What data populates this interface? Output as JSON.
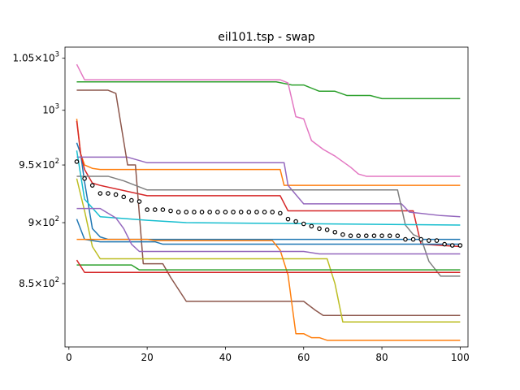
{
  "chart_data": {
    "type": "line",
    "title": "eil101.tsp - swap",
    "xlabel": "",
    "ylabel": "",
    "xlim": [
      -1,
      102
    ],
    "ylim": [
      801,
      1061
    ],
    "yscale": "log",
    "grid": false,
    "legend": "none",
    "xticks": [
      0,
      20,
      40,
      60,
      80,
      100
    ],
    "xtick_labels": [
      "0",
      "20",
      "40",
      "60",
      "80",
      "100"
    ],
    "yticks": [
      850,
      900,
      950,
      1000,
      1050
    ],
    "ytick_labels": [
      {
        "mant": "8.5",
        "exp": "2"
      },
      {
        "mant": "9",
        "exp": "2"
      },
      {
        "mant": "9.5",
        "exp": "2"
      },
      {
        "mant": "",
        "exp": "3"
      },
      {
        "mant": "1.05",
        "exp": "3"
      }
    ],
    "series": [
      {
        "color": "#1f77b4",
        "points": [
          [
            2,
            970
          ],
          [
            3,
            960
          ],
          [
            4,
            935
          ],
          [
            6,
            895
          ],
          [
            8,
            888
          ],
          [
            10,
            886
          ],
          [
            60,
            886
          ],
          [
            100,
            886
          ]
        ]
      },
      {
        "color": "#ff7f0e",
        "points": [
          [
            2,
            992
          ],
          [
            3,
            960
          ],
          [
            4,
            950
          ],
          [
            6,
            947
          ],
          [
            8,
            946
          ],
          [
            54,
            946
          ],
          [
            55,
            932
          ],
          [
            100,
            932
          ]
        ]
      },
      {
        "color": "#2ca02c",
        "points": [
          [
            2,
            1027
          ],
          [
            53,
            1027
          ],
          [
            57,
            1024
          ],
          [
            60,
            1024
          ],
          [
            64,
            1018
          ],
          [
            68,
            1018
          ],
          [
            71,
            1014
          ],
          [
            77,
            1014
          ],
          [
            80,
            1011
          ],
          [
            100,
            1011
          ]
        ]
      },
      {
        "color": "#d62728",
        "points": [
          [
            2,
            990
          ],
          [
            3,
            960
          ],
          [
            4,
            946
          ],
          [
            6,
            934
          ],
          [
            8,
            932
          ],
          [
            20,
            923
          ],
          [
            54,
            923
          ],
          [
            56,
            910
          ],
          [
            88,
            910
          ],
          [
            90,
            882
          ],
          [
            100,
            880
          ]
        ]
      },
      {
        "color": "#9467bd",
        "points": [
          [
            2,
            957
          ],
          [
            15,
            957
          ],
          [
            17,
            955
          ],
          [
            20,
            952
          ],
          [
            55,
            952
          ],
          [
            56,
            932
          ],
          [
            60,
            916
          ],
          [
            85,
            916
          ],
          [
            87,
            909
          ],
          [
            95,
            906
          ],
          [
            100,
            905
          ]
        ]
      },
      {
        "color": "#8c564b",
        "points": [
          [
            2,
            1019
          ],
          [
            10,
            1019
          ],
          [
            12,
            1016
          ],
          [
            15,
            950
          ],
          [
            17,
            950
          ],
          [
            19,
            866
          ],
          [
            24,
            866
          ],
          [
            26,
            855
          ],
          [
            30,
            836
          ],
          [
            60,
            836
          ],
          [
            63,
            829
          ],
          [
            65,
            825
          ],
          [
            100,
            825
          ]
        ]
      },
      {
        "color": "#e377c2",
        "points": [
          [
            2,
            1044
          ],
          [
            4,
            1029
          ],
          [
            54,
            1029
          ],
          [
            56,
            1026
          ],
          [
            58,
            994
          ],
          [
            60,
            992
          ],
          [
            62,
            972
          ],
          [
            65,
            964
          ],
          [
            68,
            958
          ],
          [
            72,
            948
          ],
          [
            74,
            942
          ],
          [
            76,
            940
          ],
          [
            100,
            940
          ]
        ]
      },
      {
        "color": "#7f7f7f",
        "points": [
          [
            2,
            940
          ],
          [
            10,
            940
          ],
          [
            14,
            936
          ],
          [
            20,
            928
          ],
          [
            84,
            928
          ],
          [
            86,
            898
          ],
          [
            88,
            890
          ],
          [
            90,
            887
          ],
          [
            92,
            868
          ],
          [
            95,
            856
          ],
          [
            100,
            856
          ]
        ]
      },
      {
        "color": "#bcbd22",
        "points": [
          [
            2,
            938
          ],
          [
            4,
            910
          ],
          [
            6,
            880
          ],
          [
            8,
            870
          ],
          [
            66,
            870
          ],
          [
            68,
            850
          ],
          [
            70,
            820
          ],
          [
            100,
            820
          ]
        ]
      },
      {
        "color": "#17becf",
        "points": [
          [
            2,
            963
          ],
          [
            4,
            920
          ],
          [
            8,
            905
          ],
          [
            20,
            902
          ],
          [
            30,
            900
          ],
          [
            100,
            898
          ]
        ]
      },
      {
        "color": "#1f77b4",
        "points": [
          [
            2,
            903
          ],
          [
            4,
            886
          ],
          [
            8,
            884
          ],
          [
            22,
            884
          ],
          [
            24,
            882
          ],
          [
            100,
            882
          ]
        ]
      },
      {
        "color": "#ff7f0e",
        "points": [
          [
            2,
            886
          ],
          [
            20,
            886
          ],
          [
            22,
            885
          ],
          [
            52,
            885
          ],
          [
            54,
            877
          ],
          [
            56,
            857
          ],
          [
            58,
            811
          ],
          [
            60,
            811
          ],
          [
            62,
            808
          ],
          [
            64,
            808
          ],
          [
            66,
            806
          ],
          [
            100,
            806
          ]
        ]
      },
      {
        "color": "#2ca02c",
        "points": [
          [
            2,
            865
          ],
          [
            16,
            865
          ],
          [
            18,
            861
          ],
          [
            100,
            861
          ]
        ]
      },
      {
        "color": "#d62728",
        "points": [
          [
            2,
            869
          ],
          [
            3,
            864
          ],
          [
            4,
            859
          ],
          [
            100,
            859
          ]
        ]
      },
      {
        "color": "#9467bd",
        "points": [
          [
            2,
            912
          ],
          [
            8,
            912
          ],
          [
            12,
            904
          ],
          [
            14,
            895
          ],
          [
            16,
            882
          ],
          [
            18,
            876
          ],
          [
            60,
            876
          ],
          [
            64,
            874
          ],
          [
            100,
            874
          ]
        ]
      }
    ],
    "mean_markers": {
      "style": "open-circle",
      "color": "#000000",
      "points": [
        [
          2,
          953
        ],
        [
          4,
          938
        ],
        [
          6,
          932
        ],
        [
          8,
          925
        ],
        [
          10,
          925
        ],
        [
          12,
          924
        ],
        [
          14,
          922
        ],
        [
          16,
          919
        ],
        [
          18,
          918
        ],
        [
          20,
          911
        ],
        [
          22,
          911
        ],
        [
          24,
          911
        ],
        [
          26,
          910
        ],
        [
          28,
          909
        ],
        [
          30,
          909
        ],
        [
          32,
          909
        ],
        [
          34,
          909
        ],
        [
          36,
          909
        ],
        [
          38,
          909
        ],
        [
          40,
          909
        ],
        [
          42,
          909
        ],
        [
          44,
          909
        ],
        [
          46,
          909
        ],
        [
          48,
          909
        ],
        [
          50,
          909
        ],
        [
          52,
          909
        ],
        [
          54,
          908
        ],
        [
          56,
          903
        ],
        [
          58,
          901
        ],
        [
          60,
          899
        ],
        [
          62,
          897
        ],
        [
          64,
          895
        ],
        [
          66,
          894
        ],
        [
          68,
          892
        ],
        [
          70,
          890
        ],
        [
          72,
          889
        ],
        [
          74,
          889
        ],
        [
          76,
          889
        ],
        [
          78,
          889
        ],
        [
          80,
          889
        ],
        [
          82,
          889
        ],
        [
          84,
          889
        ],
        [
          86,
          886
        ],
        [
          88,
          886
        ],
        [
          90,
          886
        ],
        [
          92,
          885
        ],
        [
          94,
          885
        ],
        [
          96,
          882
        ],
        [
          98,
          881
        ],
        [
          100,
          881
        ]
      ]
    }
  }
}
